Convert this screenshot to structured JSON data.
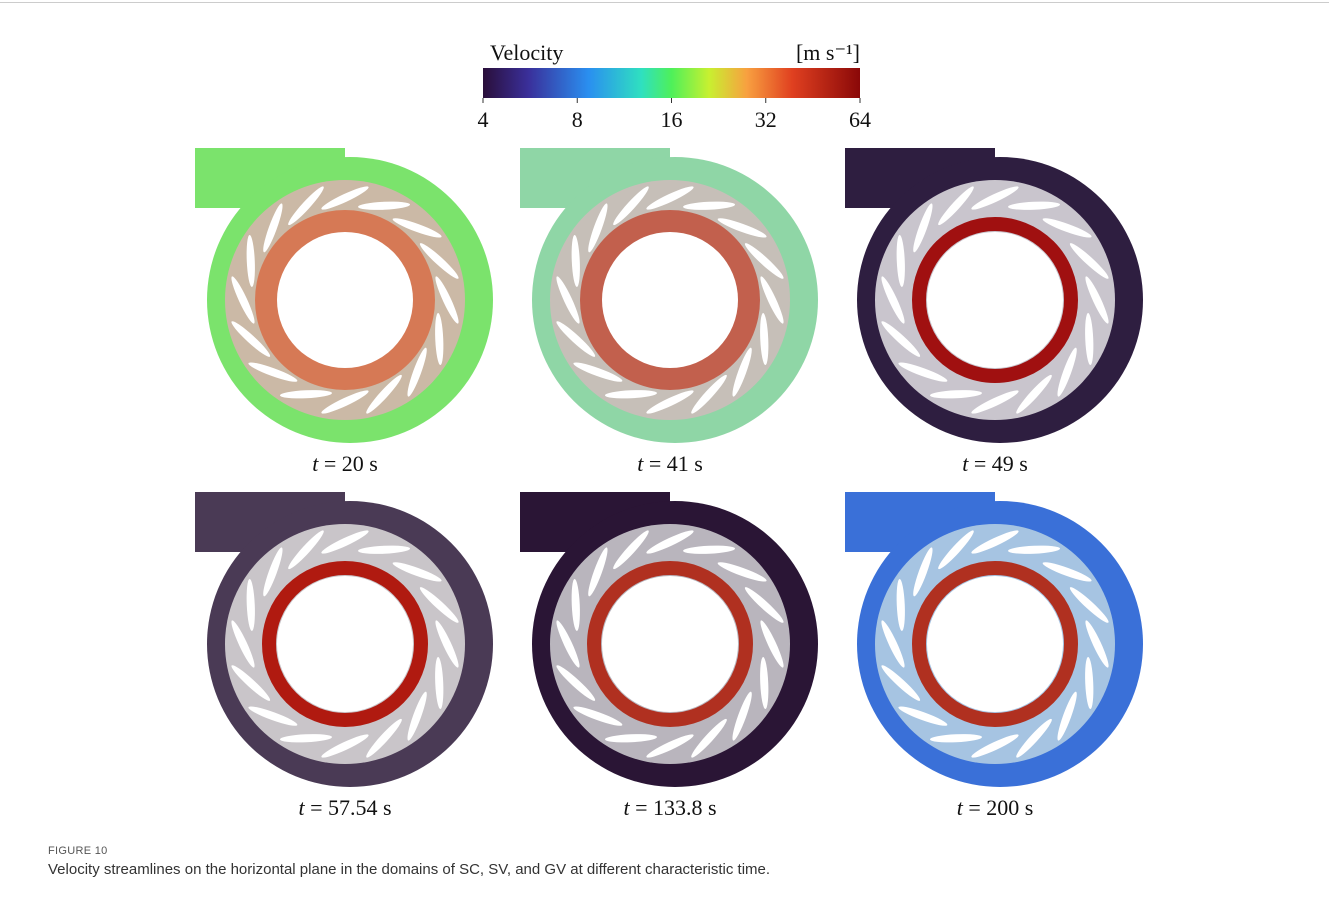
{
  "colorbar": {
    "title": "Velocity",
    "unit": "[m s⁻¹]",
    "lim": [
      4,
      64
    ],
    "log_scale": true,
    "ticks": [
      4,
      8,
      16,
      32,
      64
    ]
  },
  "panels": [
    {
      "caption": "t = 20 s"
    },
    {
      "caption": "t = 41 s"
    },
    {
      "caption": "t = 49 s"
    },
    {
      "caption": "t = 57.54 s"
    },
    {
      "caption": "t = 133.8 s"
    },
    {
      "caption": "t = 200 s"
    }
  ],
  "figure": {
    "label": "FIGURE 10",
    "caption": "Velocity streamlines on the horizontal plane in the domains of SC, SV, and GV at different characteristic time."
  }
}
